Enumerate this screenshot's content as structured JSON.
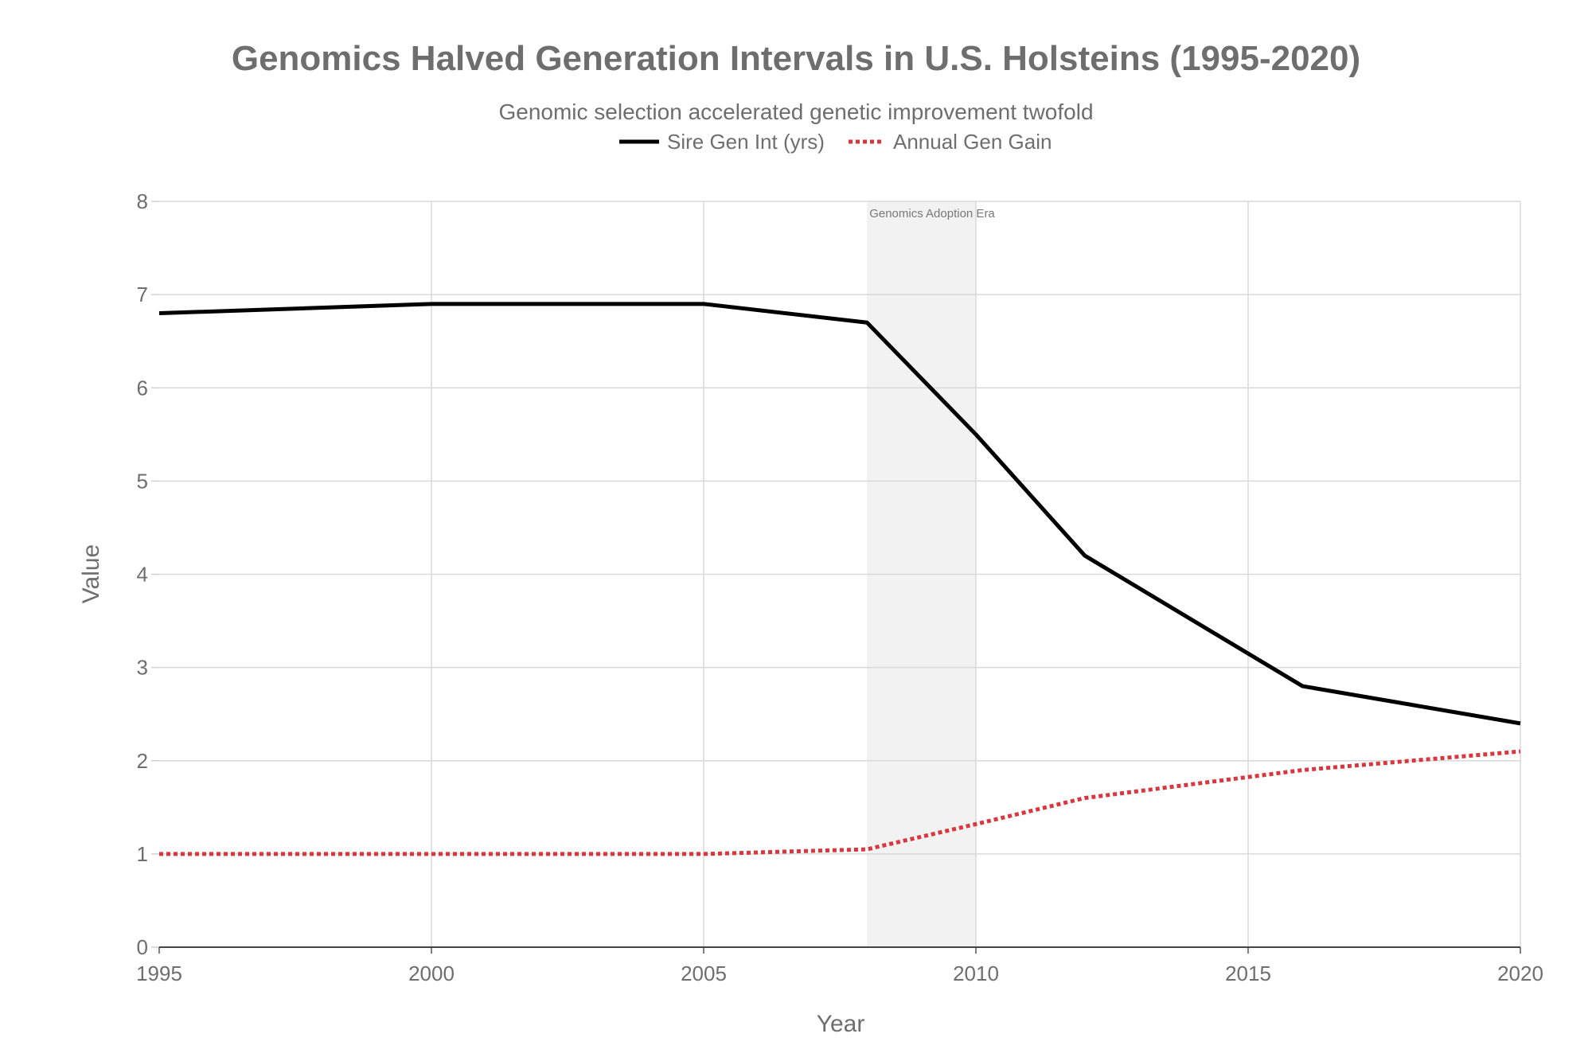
{
  "chart_data": {
    "type": "line",
    "title": "Genomics Halved Generation Intervals in U.S. Holsteins (1995-2020)",
    "subtitle": "Genomic selection accelerated genetic improvement twofold",
    "xlabel": "Year",
    "ylabel": "Value",
    "xlim": [
      1995,
      2020
    ],
    "ylim": [
      0,
      8
    ],
    "x_ticks": [
      1995,
      2000,
      2005,
      2010,
      2015,
      2020
    ],
    "y_ticks": [
      0,
      1,
      2,
      3,
      4,
      5,
      6,
      7,
      8
    ],
    "grid": true,
    "legend_position": "top-center",
    "series": [
      {
        "name": "Sire Gen Int (yrs)",
        "color": "#000000",
        "style": "solid",
        "points": [
          [
            1995,
            6.8
          ],
          [
            2000,
            6.9
          ],
          [
            2005,
            6.9
          ],
          [
            2008,
            6.7
          ],
          [
            2010,
            5.5
          ],
          [
            2012,
            4.2
          ],
          [
            2016,
            2.8
          ],
          [
            2020,
            2.4
          ]
        ]
      },
      {
        "name": "Annual Gen Gain",
        "color": "#d9363e",
        "style": "dotted",
        "points": [
          [
            1995,
            1.0
          ],
          [
            2000,
            1.0
          ],
          [
            2005,
            1.0
          ],
          [
            2008,
            1.05
          ],
          [
            2010,
            1.32
          ],
          [
            2012,
            1.6
          ],
          [
            2016,
            1.9
          ],
          [
            2020,
            2.1
          ]
        ]
      }
    ],
    "annotations": [
      {
        "type": "band",
        "x_start": 2008,
        "x_end": 2010,
        "label": "Genomics Adoption Era",
        "color": "#f2f2f2"
      }
    ]
  }
}
